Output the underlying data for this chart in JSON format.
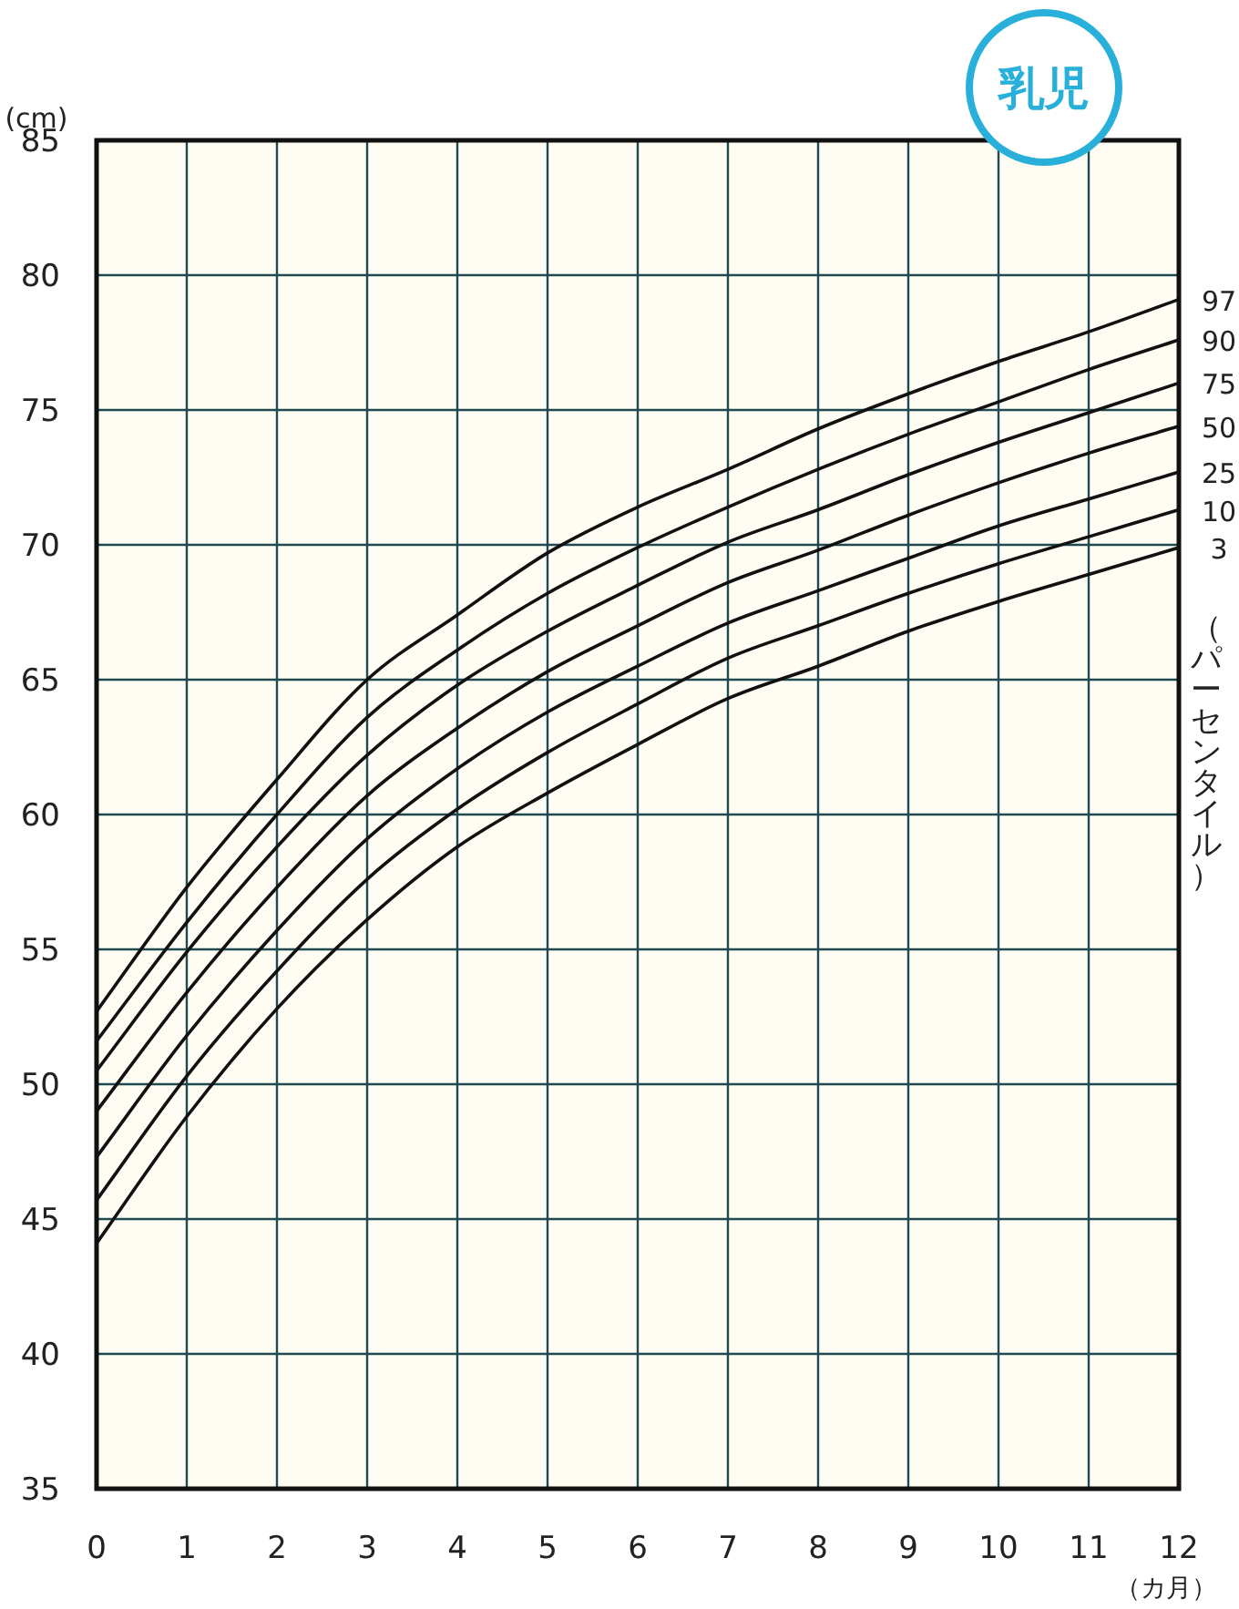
{
  "chart_data": {
    "type": "line",
    "title": "乳児",
    "ylabel": "(cm)",
    "xlabel": "（カ月）",
    "legend_title": "（パーセンタイル）",
    "x": [
      0,
      1,
      2,
      3,
      4,
      5,
      6,
      7,
      8,
      9,
      10,
      11,
      12
    ],
    "xlim": [
      0,
      12
    ],
    "xticks": [
      0,
      1,
      2,
      3,
      4,
      5,
      6,
      7,
      8,
      9,
      10,
      11,
      12
    ],
    "ylim": [
      35,
      85
    ],
    "yticks": [
      35,
      40,
      45,
      50,
      55,
      60,
      65,
      70,
      75,
      80,
      85
    ],
    "grid": true,
    "marker": "none",
    "line_style": "solid",
    "series": [
      {
        "name": "97",
        "color": "#111111",
        "values": [
          52.7,
          57.3,
          61.3,
          65.0,
          67.4,
          69.7,
          71.4,
          72.8,
          74.3,
          75.6,
          76.8,
          77.9,
          79.1
        ]
      },
      {
        "name": "90",
        "color": "#111111",
        "values": [
          51.6,
          56.0,
          60.0,
          63.6,
          66.1,
          68.2,
          69.9,
          71.4,
          72.8,
          74.1,
          75.3,
          76.5,
          77.6
        ]
      },
      {
        "name": "75",
        "color": "#111111",
        "values": [
          50.5,
          54.9,
          58.8,
          62.2,
          64.8,
          66.8,
          68.5,
          70.1,
          71.3,
          72.6,
          73.8,
          74.9,
          76.0
        ]
      },
      {
        "name": "50",
        "color": "#111111",
        "values": [
          49.0,
          53.4,
          57.3,
          60.7,
          63.2,
          65.3,
          67.0,
          68.6,
          69.8,
          71.1,
          72.3,
          73.4,
          74.4
        ]
      },
      {
        "name": "25",
        "color": "#111111",
        "values": [
          47.3,
          51.8,
          55.7,
          59.1,
          61.7,
          63.8,
          65.5,
          67.1,
          68.3,
          69.5,
          70.7,
          71.7,
          72.7
        ]
      },
      {
        "name": "10",
        "color": "#111111",
        "values": [
          45.7,
          50.3,
          54.2,
          57.6,
          60.2,
          62.3,
          64.1,
          65.8,
          67.0,
          68.2,
          69.3,
          70.3,
          71.3
        ]
      },
      {
        "name": "3",
        "color": "#111111",
        "values": [
          44.1,
          48.8,
          52.8,
          56.1,
          58.8,
          60.8,
          62.6,
          64.3,
          65.5,
          66.8,
          67.9,
          68.9,
          69.9
        ]
      }
    ]
  }
}
